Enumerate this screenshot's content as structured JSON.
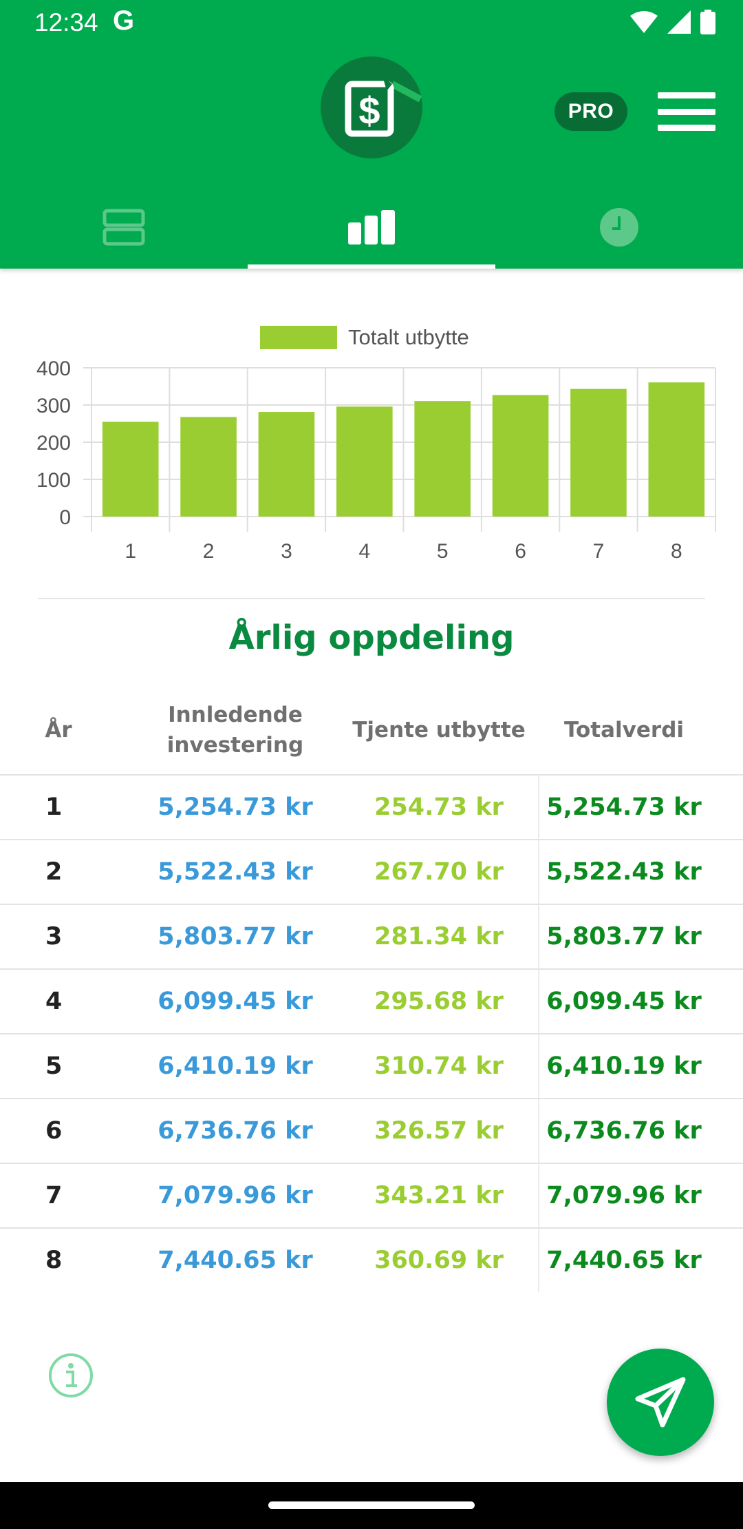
{
  "status_bar": {
    "time": "12:34",
    "google_glyph": "G"
  },
  "app": {
    "logo_icon": "dollar-document-icon",
    "pro_label": "PRO",
    "menu_icon": "hamburger-menu-icon",
    "brand_color": "#00aa4f"
  },
  "tabs": [
    {
      "icon": "list-view-icon",
      "selected": false
    },
    {
      "icon": "bar-chart-icon",
      "selected": true
    },
    {
      "icon": "clock-icon",
      "selected": false
    }
  ],
  "chart_data": {
    "type": "bar",
    "title": "",
    "xlabel": "",
    "ylabel": "",
    "categories": [
      "1",
      "2",
      "3",
      "4",
      "5",
      "6",
      "7",
      "8"
    ],
    "series": [
      {
        "name": "Totalt utbytte",
        "values": [
          254.73,
          267.7,
          281.34,
          295.68,
          310.74,
          326.57,
          343.21,
          360.69
        ],
        "color": "#9acd32"
      }
    ],
    "ylim": [
      0,
      400
    ],
    "yticks": [
      "0",
      "100",
      "200",
      "300",
      "400"
    ],
    "grid": true,
    "legend": "top-center"
  },
  "section_title": "Årlig oppdeling",
  "table": {
    "headers": {
      "year": "År",
      "initial_line1": "Innledende",
      "initial_line2": "investering",
      "dividend": "Tjente utbytte",
      "total": "Totalverdi"
    },
    "rows": [
      {
        "year": "1",
        "initial": "5,254.73 kr",
        "dividend": "254.73 kr",
        "total": "5,254.73 kr"
      },
      {
        "year": "2",
        "initial": "5,522.43 kr",
        "dividend": "267.70 kr",
        "total": "5,522.43 kr"
      },
      {
        "year": "3",
        "initial": "5,803.77 kr",
        "dividend": "281.34 kr",
        "total": "5,803.77 kr"
      },
      {
        "year": "4",
        "initial": "6,099.45 kr",
        "dividend": "295.68 kr",
        "total": "6,099.45 kr"
      },
      {
        "year": "5",
        "initial": "6,410.19 kr",
        "dividend": "310.74 kr",
        "total": "6,410.19 kr"
      },
      {
        "year": "6",
        "initial": "6,736.76 kr",
        "dividend": "326.57 kr",
        "total": "6,736.76 kr"
      },
      {
        "year": "7",
        "initial": "7,079.96 kr",
        "dividend": "343.21 kr",
        "total": "7,079.96 kr"
      },
      {
        "year": "8",
        "initial": "7,440.65 kr",
        "dividend": "360.69 kr",
        "total": "7,440.65 kr"
      }
    ]
  },
  "bottom": {
    "info_icon": "info-icon",
    "fab_icon": "send-icon"
  }
}
